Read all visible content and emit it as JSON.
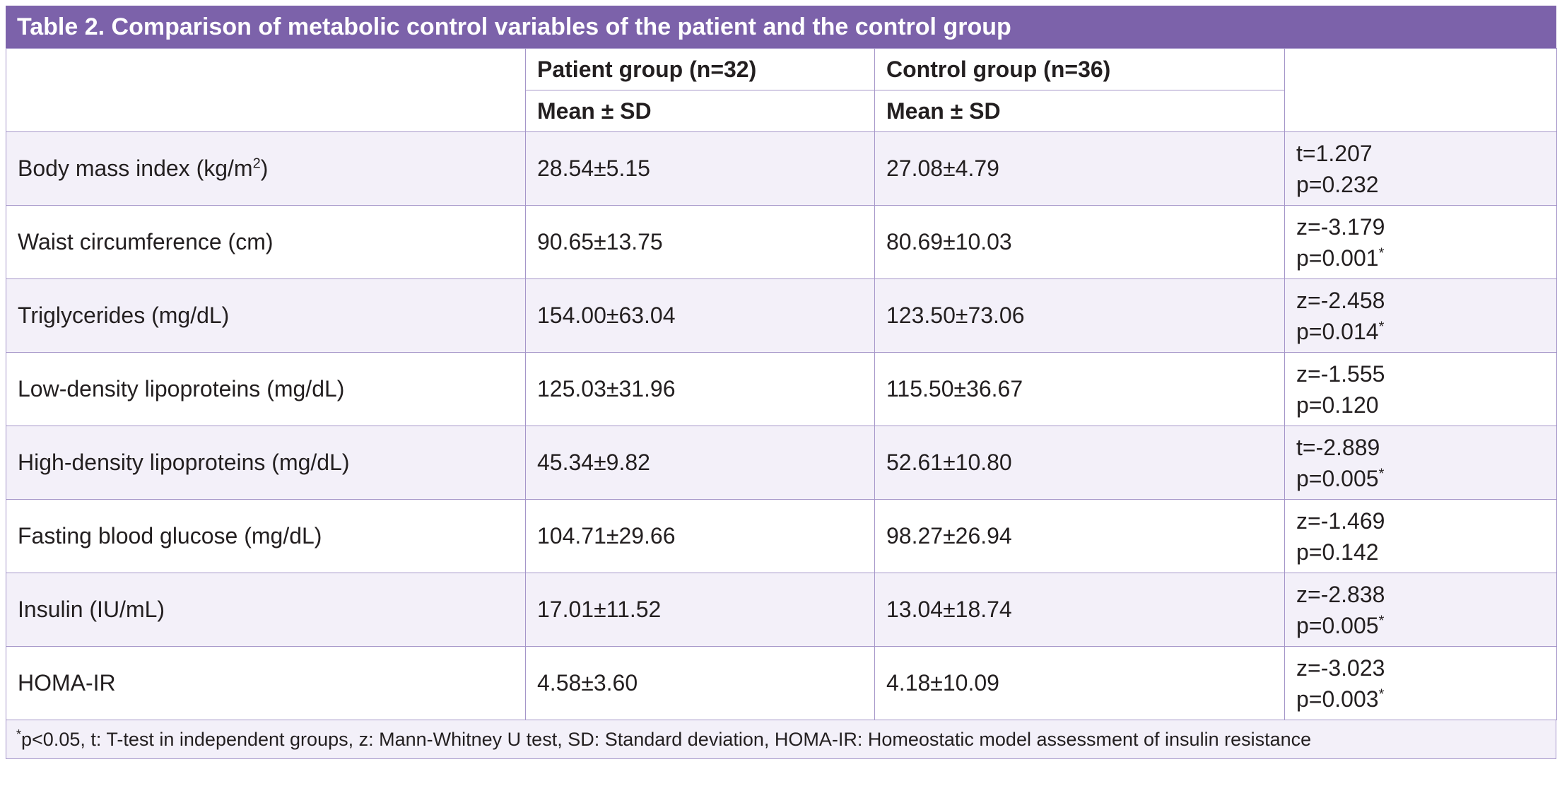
{
  "table": {
    "title": "Table 2. Comparison of metabolic control variables of the patient and the control group",
    "group_headers": [
      "Patient group (n=32)",
      "Control group (n=36)"
    ],
    "sub_headers": [
      "Mean ± SD",
      "Mean ± SD"
    ],
    "rows": [
      {
        "variable": "Body mass index (kg/m",
        "variable_sup": "2",
        "variable_tail": ")",
        "patient": "28.54±5.15",
        "control": "27.08±4.79",
        "stat": "t=1.207",
        "p": "p=0.232",
        "sig": ""
      },
      {
        "variable": "Waist circumference (cm)",
        "variable_sup": "",
        "variable_tail": "",
        "patient": "90.65±13.75",
        "control": "80.69±10.03",
        "stat": "z=-3.179",
        "p": "p=0.001",
        "sig": "*"
      },
      {
        "variable": "Triglycerides (mg/dL)",
        "variable_sup": "",
        "variable_tail": "",
        "patient": "154.00±63.04",
        "control": "123.50±73.06",
        "stat": "z=-2.458",
        "p": "p=0.014",
        "sig": "*"
      },
      {
        "variable": "Low-density lipoproteins (mg/dL)",
        "variable_sup": "",
        "variable_tail": "",
        "patient": "125.03±31.96",
        "control": "115.50±36.67",
        "stat": "z=-1.555",
        "p": "p=0.120",
        "sig": ""
      },
      {
        "variable": "High-density lipoproteins (mg/dL)",
        "variable_sup": "",
        "variable_tail": "",
        "patient": "45.34±9.82",
        "control": "52.61±10.80",
        "stat": "t=-2.889",
        "p": "p=0.005",
        "sig": "*"
      },
      {
        "variable": "Fasting blood glucose (mg/dL)",
        "variable_sup": "",
        "variable_tail": "",
        "patient": "104.71±29.66",
        "control": "98.27±26.94",
        "stat": "z=-1.469",
        "p": "p=0.142",
        "sig": ""
      },
      {
        "variable": "Insulin (IU/mL)",
        "variable_sup": "",
        "variable_tail": "",
        "patient": "17.01±11.52",
        "control": "13.04±18.74",
        "stat": "z=-2.838",
        "p": "p=0.005",
        "sig": "*"
      },
      {
        "variable": "HOMA-IR",
        "variable_sup": "",
        "variable_tail": "",
        "patient": "4.58±3.60",
        "control": "4.18±10.09",
        "stat": "z=-3.023",
        "p": "p=0.003",
        "sig": "*"
      }
    ],
    "footnote_star": "*",
    "footnote": "p<0.05, t: T-test in independent groups, z: Mann-Whitney U test, SD: Standard deviation, HOMA-IR: Homeostatic model assessment of insulin resistance"
  },
  "colors": {
    "title_bar": "#7c62aa",
    "border": "#a596c9",
    "row_tint": "#f3f0f9"
  }
}
